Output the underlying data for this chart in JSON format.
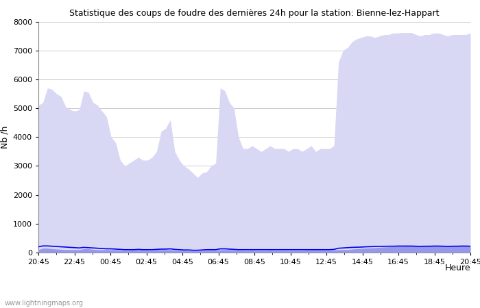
{
  "title": "Statistique des coups de foudre des dernières 24h pour la station: Bienne-lez-Happart",
  "xlabel": "Heure",
  "ylabel": "Nb /h",
  "xlim": [
    0,
    96
  ],
  "ylim": [
    0,
    8000
  ],
  "yticks": [
    0,
    1000,
    2000,
    3000,
    4000,
    5000,
    6000,
    7000,
    8000
  ],
  "xtick_labels": [
    "20:45",
    "22:45",
    "00:45",
    "02:45",
    "04:45",
    "06:45",
    "08:45",
    "10:45",
    "12:45",
    "14:45",
    "16:45",
    "18:45",
    "20:45"
  ],
  "background_color": "#ffffff",
  "plot_bg_color": "#ffffff",
  "grid_color": "#cccccc",
  "watermark": "www.lightningmaps.org",
  "total_foudre_color": "#d8d8f5",
  "station_foudre_color": "#9898e8",
  "moyenne_color": "#0000ee",
  "total_foudre_values": [
    5100,
    5200,
    5700,
    5650,
    5500,
    5400,
    5050,
    4950,
    4900,
    4950,
    5600,
    5550,
    5200,
    5100,
    4900,
    4700,
    4000,
    3800,
    3200,
    3000,
    3100,
    3200,
    3300,
    3200,
    3200,
    3300,
    3500,
    4200,
    4300,
    4600,
    3500,
    3200,
    3000,
    2900,
    2750,
    2600,
    2750,
    2800,
    3000,
    3100,
    5700,
    5600,
    5200,
    5000,
    4000,
    3600,
    3600,
    3700,
    3600,
    3500,
    3600,
    3700,
    3600,
    3600,
    3600,
    3500,
    3600,
    3600,
    3500,
    3600,
    3700,
    3500,
    3600,
    3600,
    3600,
    3700,
    6600,
    7000,
    7100,
    7300,
    7400,
    7450,
    7500,
    7500,
    7450,
    7500,
    7550,
    7550,
    7600,
    7600,
    7620,
    7620,
    7620,
    7550,
    7500,
    7550,
    7550,
    7600,
    7600,
    7550,
    7500,
    7550,
    7550,
    7550,
    7550,
    7600
  ],
  "station_foudre_values": [
    100,
    150,
    150,
    130,
    120,
    110,
    100,
    100,
    100,
    100,
    130,
    130,
    110,
    100,
    100,
    100,
    100,
    100,
    80,
    80,
    80,
    90,
    100,
    90,
    80,
    80,
    100,
    100,
    100,
    100,
    80,
    70,
    70,
    60,
    60,
    60,
    70,
    80,
    80,
    80,
    100,
    100,
    100,
    90,
    80,
    70,
    70,
    80,
    70,
    70,
    70,
    80,
    70,
    70,
    70,
    70,
    70,
    70,
    70,
    80,
    80,
    80,
    80,
    80,
    80,
    90,
    100,
    100,
    100,
    120,
    130,
    140,
    150,
    160,
    170,
    180,
    190,
    200,
    210,
    220,
    220,
    230,
    230,
    230,
    225,
    230,
    235,
    240,
    240,
    235,
    225,
    230,
    235,
    240,
    240,
    235
  ],
  "moyenne_values": [
    200,
    230,
    230,
    220,
    210,
    200,
    190,
    180,
    170,
    160,
    180,
    170,
    160,
    150,
    140,
    130,
    130,
    120,
    110,
    100,
    100,
    100,
    110,
    100,
    100,
    100,
    110,
    120,
    120,
    130,
    110,
    100,
    90,
    90,
    80,
    80,
    90,
    100,
    100,
    100,
    130,
    130,
    120,
    110,
    100,
    100,
    100,
    100,
    100,
    100,
    100,
    100,
    100,
    100,
    100,
    100,
    100,
    100,
    100,
    100,
    100,
    100,
    100,
    100,
    100,
    110,
    150,
    160,
    170,
    180,
    185,
    190,
    200,
    205,
    210,
    215,
    215,
    220,
    220,
    225,
    225,
    225,
    225,
    220,
    215,
    220,
    220,
    225,
    225,
    220,
    215,
    220,
    220,
    225,
    225,
    220
  ]
}
